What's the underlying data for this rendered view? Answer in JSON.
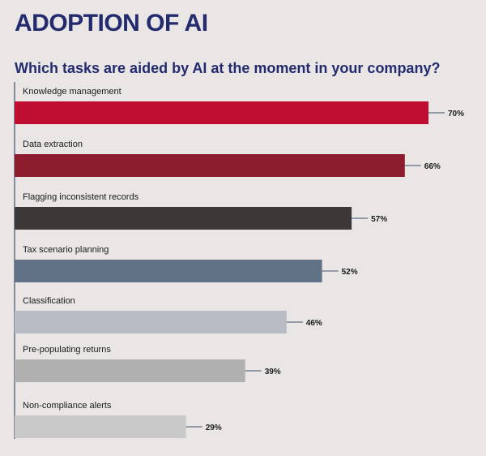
{
  "header": {
    "title": "ADOPTION OF AI",
    "subtitle": "Which tasks are aided by AI at the moment in your company?"
  },
  "chart_data": {
    "type": "bar",
    "orientation": "horizontal",
    "title": "Which tasks are aided by AI at the moment in your company?",
    "xlabel": "",
    "ylabel": "",
    "xlim": [
      0,
      70
    ],
    "grid": false,
    "categories": [
      "Knowledge management",
      "Data extraction",
      "Flagging inconsistent records",
      "Tax scenario planning",
      "Classification",
      "Pre-populating returns",
      "Non-compliance alerts"
    ],
    "values": [
      70,
      66,
      57,
      52,
      46,
      39,
      29
    ],
    "value_labels": [
      "70%",
      "66%",
      "57%",
      "52%",
      "46%",
      "39%",
      "29%"
    ],
    "colors": [
      "#c00d32",
      "#8b1d2f",
      "#3b3837",
      "#617186",
      "#b8bcc5",
      "#b0b0b0",
      "#c9c9c9"
    ]
  }
}
